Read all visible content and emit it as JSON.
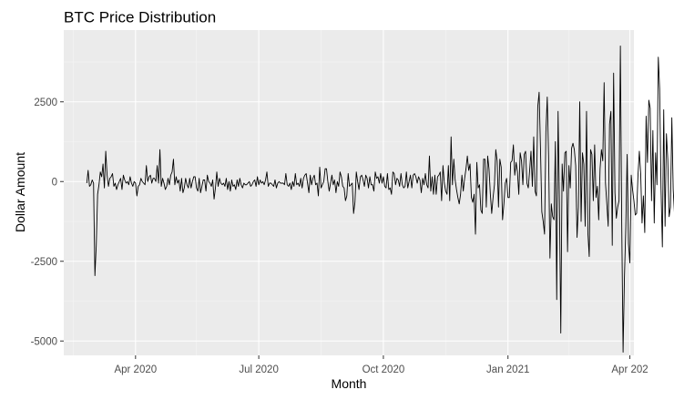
{
  "chart_data": {
    "type": "line",
    "title": "BTC Price Distribution",
    "xlabel": "Month",
    "ylabel": "Dollar Amount",
    "x_range": [
      "2020-02-08",
      "2021-04-04"
    ],
    "ylim": [
      -5450,
      4750
    ],
    "x_ticks": [
      {
        "date": "2020-04-01",
        "label": "Apr 2020"
      },
      {
        "date": "2020-07-01",
        "label": "Jul 2020"
      },
      {
        "date": "2020-10-01",
        "label": "Oct 2020"
      },
      {
        "date": "2021-01-01",
        "label": "Jan 2021"
      },
      {
        "date": "2021-04-01",
        "label": "Apr 202"
      }
    ],
    "y_ticks": [
      {
        "value": 2500,
        "label": "2500"
      },
      {
        "value": 0,
        "label": "0"
      },
      {
        "value": -2500,
        "label": "-2500"
      },
      {
        "value": -5000,
        "label": "-5000"
      }
    ],
    "x_minor_ticks": [
      "2020-02-15",
      "2020-05-16",
      "2020-08-16",
      "2020-11-16",
      "2021-02-15"
    ],
    "y_minor_ticks": [
      3750,
      1250,
      -1250,
      -3750
    ],
    "grid": true,
    "background_color": "#ebebeb",
    "line_color": "#000000",
    "series": [
      {
        "x_start": "2020-02-25",
        "x_step_days": 1,
        "values": [
          -50,
          350,
          -150,
          -100,
          50,
          -50,
          -2950,
          -2000,
          -400,
          -100,
          300,
          150,
          550,
          -200,
          950,
          200,
          -150,
          100,
          150,
          250,
          -150,
          -50,
          -250,
          -100,
          0,
          100,
          -250,
          200,
          50,
          -50,
          0,
          -100,
          150,
          -50,
          -150,
          0,
          -50,
          -450,
          -150,
          -100,
          100,
          0,
          -50,
          -100,
          500,
          0,
          150,
          200,
          -50,
          100,
          100,
          0,
          500,
          -50,
          1000,
          -150,
          100,
          -50,
          -250,
          -150,
          100,
          -100,
          200,
          300,
          700,
          -100,
          150,
          -50,
          50,
          -300,
          100,
          -350,
          -200,
          100,
          -100,
          -200,
          100,
          -200,
          0,
          150,
          150,
          -200,
          -300,
          100,
          -350,
          -150,
          50,
          50,
          -300,
          200,
          0,
          -50,
          -150,
          50,
          -550,
          -200,
          300,
          -150,
          100,
          -50,
          -100,
          -50,
          -150,
          100,
          -250,
          0,
          -300,
          50,
          -150,
          -100,
          -250,
          50,
          -150,
          100,
          -100,
          -200,
          -50,
          -100,
          -100,
          -50,
          0,
          -150,
          -100,
          0,
          50,
          -150,
          150,
          -100,
          50,
          -50,
          0,
          -100,
          50,
          300,
          -150,
          -50,
          -50,
          -100,
          -150,
          50,
          -200,
          -50,
          0,
          -50,
          -50,
          -50,
          -100,
          250,
          -100,
          -150,
          -50,
          -250,
          0,
          -150,
          250,
          -100,
          -50,
          -150,
          100,
          -200,
          100,
          200,
          250,
          -50,
          -350,
          200,
          -100,
          100,
          200,
          -100,
          -50,
          -450,
          450,
          -200,
          -100,
          0,
          400,
          400,
          0,
          -300,
          -50,
          200,
          -100,
          50,
          -350,
          0,
          -150,
          300,
          150,
          -150,
          -200,
          -600,
          -450,
          250,
          -150,
          -100,
          -50,
          -1000,
          -650,
          300,
          0,
          -250,
          150,
          200,
          50,
          -150,
          200,
          100,
          -200,
          150,
          -100,
          -100,
          -300,
          300,
          100,
          150,
          -50,
          250,
          -50,
          150,
          -150,
          -200,
          250,
          -250,
          -200,
          -400,
          300,
          250,
          -100,
          100,
          50,
          -150,
          250,
          -100,
          -200,
          -150,
          300,
          -200,
          0,
          200,
          -200,
          200,
          250,
          150,
          -50,
          150,
          50,
          -350,
          100,
          -100,
          250,
          -100,
          -200,
          800,
          -300,
          150,
          -400,
          200,
          -400,
          150,
          200,
          300,
          -600,
          500,
          -50,
          -300,
          -400,
          500,
          -600,
          1400,
          -100,
          700,
          50,
          -250,
          -500,
          -700,
          -400,
          200,
          -300,
          100,
          400,
          800,
          350,
          550,
          -500,
          -650,
          -400,
          -1650,
          600,
          -200,
          -100,
          -900,
          -1000,
          700,
          700,
          -800,
          800,
          400,
          -400,
          -1000,
          -500,
          -100,
          1000,
          650,
          -800,
          700,
          450,
          -1200,
          -700,
          -50,
          100,
          -500,
          -500,
          600,
          650,
          1150,
          200,
          600,
          300,
          -400,
          900,
          650,
          -100,
          850,
          950,
          -50,
          -200,
          350,
          950,
          -150,
          1400,
          -300,
          -450,
          2350,
          2800,
          1050,
          -950,
          -1250,
          -1650,
          1550,
          2650,
          800,
          -2400,
          -700,
          -1100,
          -1200,
          1250,
          -3700,
          2200,
          -700,
          -4750,
          550,
          -300,
          900,
          950,
          -2200,
          500,
          -200,
          1050,
          1200,
          1000,
          500,
          -1750,
          -800,
          2500,
          -1250,
          900,
          550,
          -1400,
          2200,
          -1600,
          -2350,
          1000,
          850,
          -600,
          1150,
          -500,
          -150,
          -1200,
          400,
          1000,
          650,
          3100,
          -50,
          -700,
          -1400,
          1800,
          2200,
          -2000,
          3400,
          -350,
          -1150,
          -800,
          -600,
          4250,
          -1350,
          -5350,
          -3000,
          -1450,
          850,
          -1950,
          -2550,
          200,
          -250,
          -600,
          -1050,
          -1000,
          200,
          950,
          250,
          -1300,
          -450,
          -1600,
          2050,
          600,
          2550,
          2300,
          -600,
          1600,
          -1300,
          900,
          -100,
          3900,
          2900,
          -200,
          -2050,
          2250,
          -1400,
          1500,
          700,
          -1100,
          -800,
          2000,
          -250,
          -1050,
          100,
          200,
          300,
          -1050,
          -150,
          0
        ]
      }
    ]
  }
}
